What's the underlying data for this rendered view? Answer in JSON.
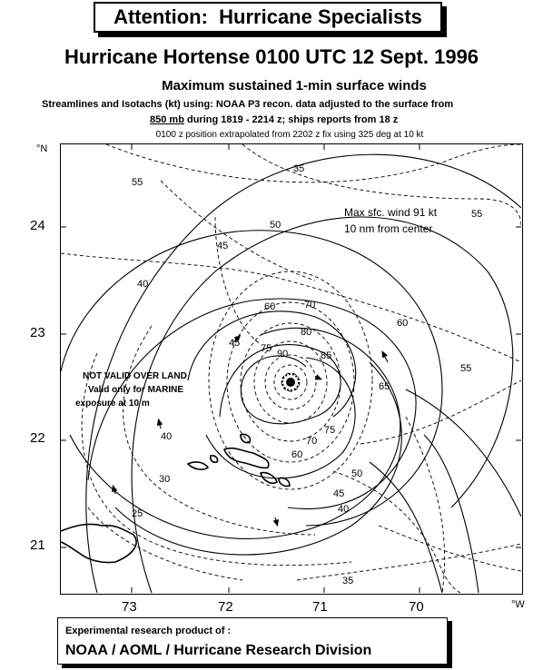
{
  "banner": "Attention:  Hurricane Specialists",
  "title": "Hurricane Hortense 0100 UTC 12 Sept. 1996",
  "subtitle": "Maximum sustained 1-min surface winds",
  "desc_line1": "Streamlines and Isotachs (kt) using: NOAA P3 recon. data adjusted to the surface from",
  "desc_line2_underlined": "850 mb",
  "desc_line2_rest": " during 1819 - 2214 z; ships reports from 18 z",
  "desc_line3": "0100 z position extrapolated from 2202 z  fix using 325 deg at 10 kt",
  "map": {
    "lat_unit": "°N",
    "lon_unit": "°W",
    "lat_labels": [
      "24",
      "23",
      "22",
      "21"
    ],
    "lon_labels": [
      "73",
      "72",
      "71",
      "70"
    ],
    "annotation_max_1": "Max sfc. wind 91 kt",
    "annotation_max_2": "10 nm from center",
    "land_note_1": "NOT VALID OVER LAND",
    "land_note_2": "Valid only for MARINE",
    "land_note_3": "exposure at 10 m",
    "isotach_labels": [
      "35",
      "55",
      "55",
      "50",
      "45",
      "40",
      "60",
      "70",
      "80",
      "60",
      "90",
      "85",
      "75",
      "55",
      "65",
      "45",
      "40",
      "70",
      "60",
      "75",
      "50",
      "30",
      "25",
      "45",
      "40",
      "35"
    ]
  },
  "footer": {
    "line1": "Experimental research product of :",
    "line2": "NOAA / AOML / Hurricane Research Division"
  }
}
